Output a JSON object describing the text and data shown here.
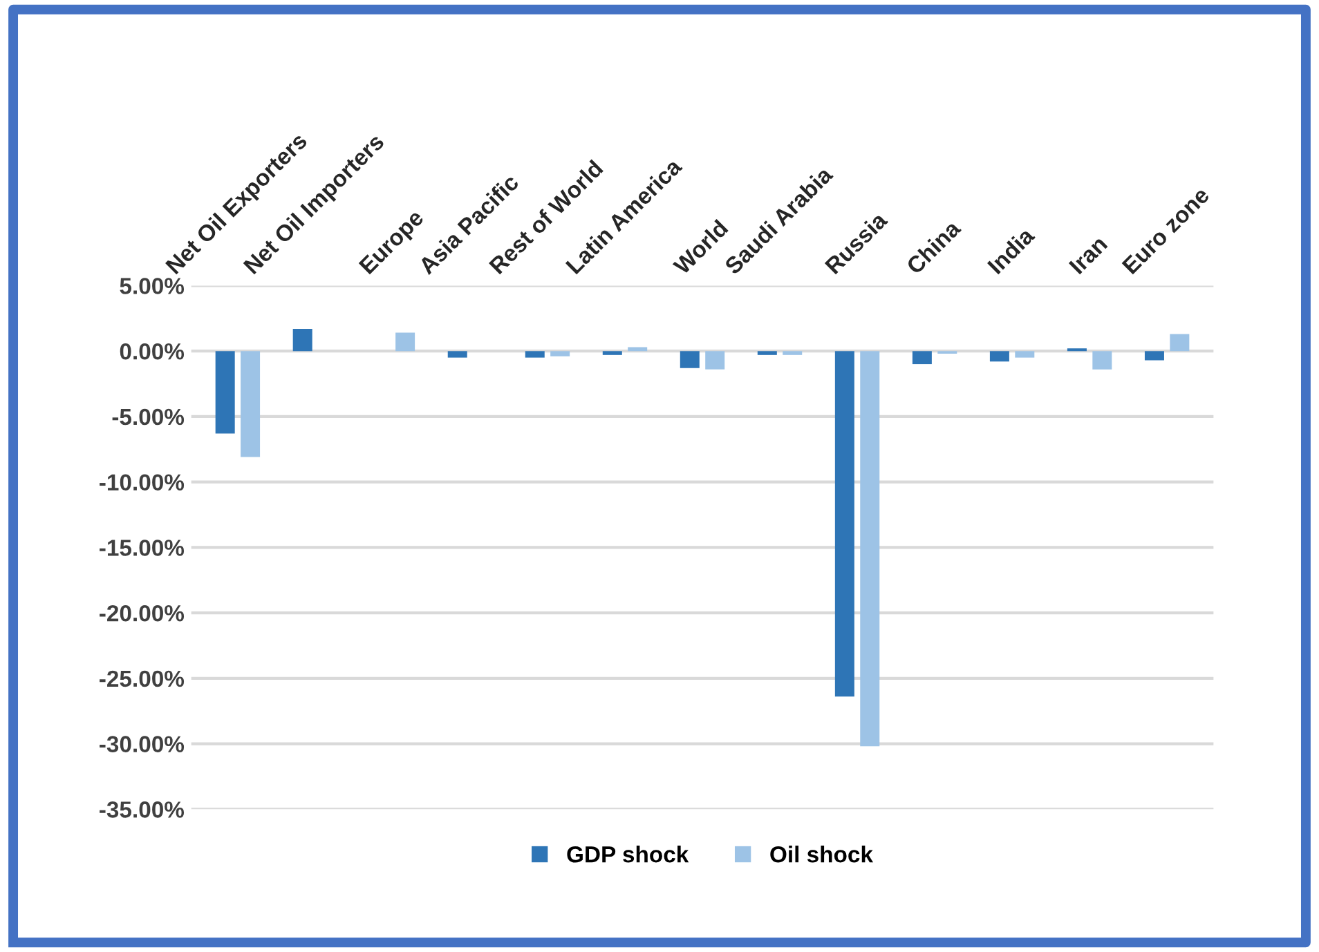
{
  "chart_data": {
    "type": "bar",
    "categories": [
      "Net Oil Exporters",
      "Net Oil Importers",
      "Europe",
      "Asia Pacific",
      "Rest of World",
      "Latin America",
      "World",
      "Saudi Arabia",
      "Russia",
      "China",
      "India",
      "Iran",
      "Euro zone"
    ],
    "series": [
      {
        "name": "GDP shock",
        "color": "#2e75b6",
        "values": [
          -6.3,
          1.7,
          null,
          -0.5,
          -0.5,
          -0.3,
          -1.3,
          -0.3,
          -26.4,
          -1.0,
          -0.8,
          0.2,
          -0.7
        ]
      },
      {
        "name": "Oil shock",
        "color": "#9dc3e6",
        "values": [
          -8.1,
          null,
          1.4,
          null,
          -0.4,
          0.3,
          -1.4,
          -0.3,
          -30.2,
          -0.2,
          -0.5,
          -1.4,
          1.3
        ]
      }
    ],
    "ylim": [
      -35,
      5
    ],
    "yticks": [
      {
        "value": 5,
        "label": "5.00%"
      },
      {
        "value": 0,
        "label": "0.00%"
      },
      {
        "value": -5,
        "label": "-5.00%"
      },
      {
        "value": -10,
        "label": "-10.00%"
      },
      {
        "value": -15,
        "label": "-15.00%"
      },
      {
        "value": -20,
        "label": "-20.00%"
      },
      {
        "value": -25,
        "label": "-25.00%"
      },
      {
        "value": -30,
        "label": "-30.00%"
      },
      {
        "value": -35,
        "label": "-35.00%"
      }
    ],
    "grid": "y",
    "legend": "bottom"
  }
}
